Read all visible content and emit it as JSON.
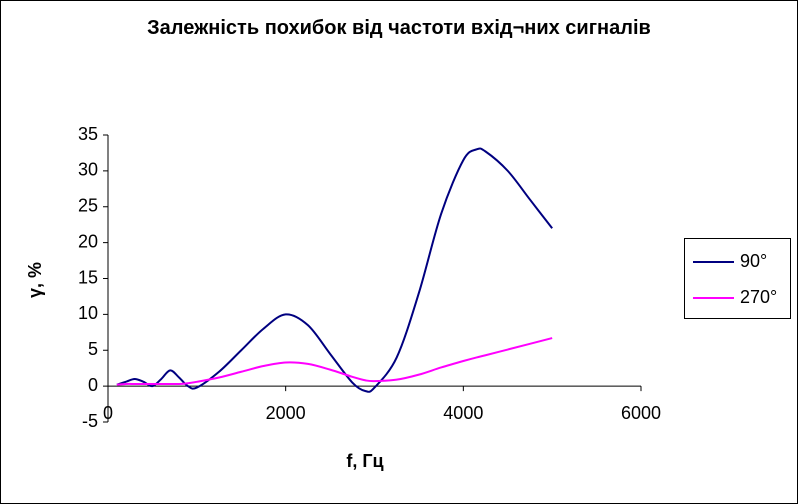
{
  "chart_data": {
    "type": "line",
    "title": "Залежність похибок від частоти вхід¬них сигналів",
    "x_label": "f, Гц",
    "y_label": "γ, %",
    "x": [
      100,
      200,
      300,
      400,
      500,
      600,
      700,
      800,
      900,
      1000,
      1250,
      1500,
      1750,
      2000,
      2250,
      2500,
      2750,
      2900,
      3000,
      3250,
      3500,
      3750,
      4000,
      4150,
      4250,
      4500,
      4750,
      5000
    ],
    "series": [
      {
        "name": "90°",
        "color": "#000080",
        "values": [
          0.2,
          0.6,
          1.0,
          0.6,
          0,
          1.0,
          2.2,
          1.2,
          0,
          -0.2,
          2.0,
          5.0,
          8.0,
          10,
          8.5,
          4.5,
          0.5,
          -0.7,
          -0.2,
          4,
          13,
          24,
          31.5,
          33,
          32.7,
          30,
          26,
          22
        ]
      },
      {
        "name": "270°",
        "color": "#ff00ff",
        "values": [
          0.2,
          0.3,
          0.3,
          0.3,
          0.3,
          0.3,
          0.3,
          0.3,
          0.4,
          0.6,
          1.2,
          2.0,
          2.8,
          3.3,
          3.1,
          2.3,
          1.3,
          0.8,
          0.7,
          0.9,
          1.6,
          2.6,
          3.5,
          4.0,
          4.3,
          5.1,
          5.9,
          6.7
        ]
      }
    ],
    "xlim": [
      0,
      6000
    ],
    "xticks": [
      0,
      2000,
      4000,
      6000
    ],
    "ylim": [
      -5,
      35
    ],
    "yticks": [
      -5,
      0,
      5,
      10,
      15,
      20,
      25,
      30,
      35
    ],
    "grid": false,
    "legend": "right",
    "smooth": true
  }
}
